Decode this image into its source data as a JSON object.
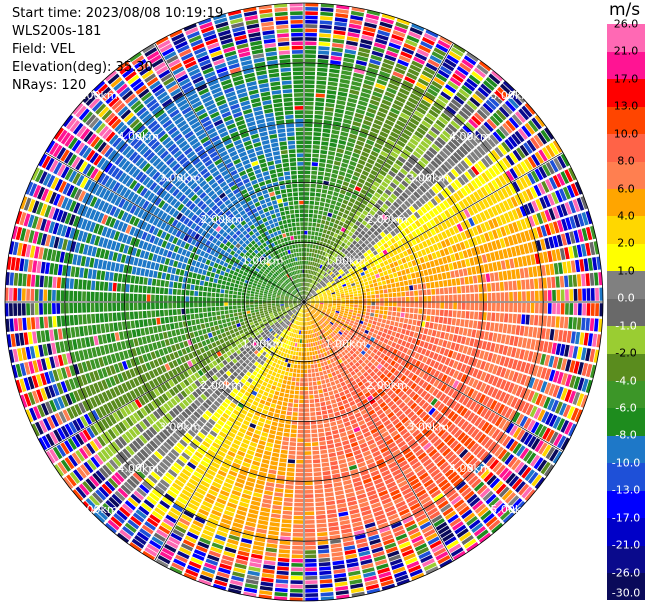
{
  "info": {
    "start_time": "Start time: 2023/08/08 10:19:19",
    "station": "WLS200s-181",
    "field": "Field: VEL",
    "elevation": "Elevation(deg): 35.30",
    "nrays": "NRays: 120"
  },
  "chart_data": {
    "type": "polar-ppi",
    "field": "VEL",
    "unit": "m/s",
    "nrays": 120,
    "elevation_deg": 35.3,
    "max_range_km": 5.0,
    "range_rings_km": [
      1.0,
      2.0,
      3.0,
      4.0,
      5.0
    ],
    "ring_labels": [
      "1.00km",
      "2.00km",
      "3.00km",
      "4.00km",
      "5.00km"
    ],
    "colorbar": {
      "title": "m/s",
      "bounds": [
        -30.0,
        -26.0,
        -21.0,
        -17.0,
        -13.0,
        -10.0,
        -8.0,
        -6.0,
        -4.0,
        -2.0,
        -1.0,
        0.0,
        1.0,
        2.0,
        4.0,
        6.0,
        8.0,
        10.0,
        13.0,
        17.0,
        21.0,
        26.0
      ],
      "tick_labels": [
        "-30.0",
        "-26.0",
        "-21.0",
        "-17.0",
        "-13.0",
        "-10.0",
        "-8.0",
        "-6.0",
        "-4.0",
        "-2.0",
        "-1.0",
        "0.0",
        "1.0",
        "2.0",
        "4.0",
        "6.0",
        "8.0",
        "10.0",
        "13.0",
        "17.0",
        "21.0",
        "26.0"
      ],
      "colors": [
        "#0a0a5a",
        "#0a0a8c",
        "#0000c8",
        "#0000ff",
        "#1e50d8",
        "#1e78c8",
        "#1e8c1e",
        "#3c9628",
        "#5a8c1e",
        "#9acd32",
        "#696969",
        "#808080",
        "#ffff00",
        "#ffd700",
        "#ffa500",
        "#ff7f50",
        "#ff6347",
        "#ff4500",
        "#ff0000",
        "#ff1493",
        "#ff69b4"
      ],
      "text_colors": [
        "#ffffff",
        "#ffffff",
        "#ffffff",
        "#ffffff",
        "#ffffff",
        "#ffffff",
        "#ffffff",
        "#ffffff",
        "#ffffff",
        "#000000",
        "#ffffff",
        "#ffffff",
        "#000000",
        "#000000",
        "#000000",
        "#000000",
        "#000000",
        "#000000",
        "#000000",
        "#000000",
        "#000000",
        "#000000"
      ]
    },
    "pattern": {
      "description_note": "inbound toward north-west, outbound toward south-east; noisy beyond about 4.2 km",
      "inbound_azimuth_deg": 315,
      "peak_speed_ms": 9.5,
      "noise_start_km": 4.2
    }
  }
}
